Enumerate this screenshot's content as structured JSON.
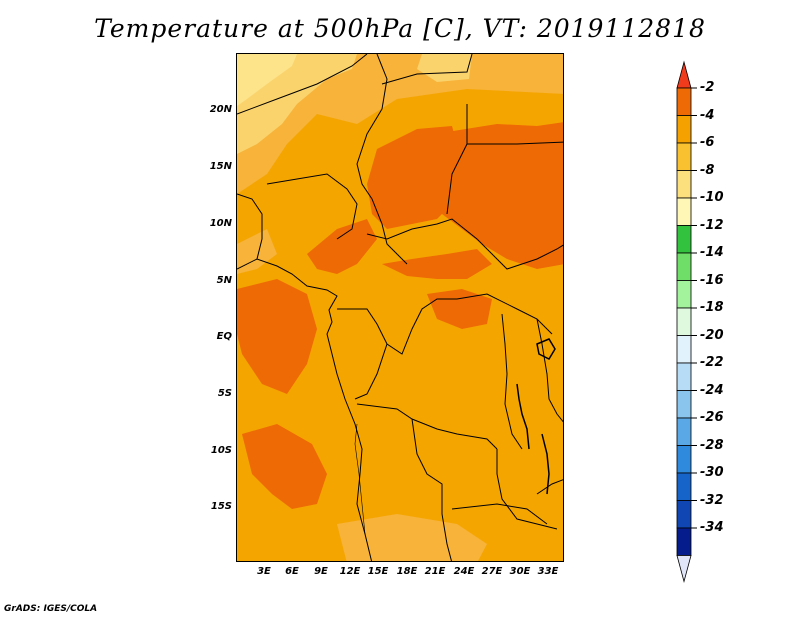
{
  "title": "Temperature at 500hPa [C], VT: 2019112818",
  "credit": "GrADS: IGES/COLA",
  "lat_labels": [
    "20N",
    "15N",
    "10N",
    "5N",
    "EQ",
    "5S",
    "10S",
    "15S"
  ],
  "lon_labels": [
    "3E",
    "6E",
    "9E",
    "12E",
    "15E",
    "18E",
    "21E",
    "24E",
    "27E",
    "30E",
    "33E"
  ],
  "colorbar": {
    "labels": [
      "-2",
      "-4",
      "-6",
      "-8",
      "-10",
      "-12",
      "-14",
      "-16",
      "-18",
      "-20",
      "-22",
      "-24",
      "-26",
      "-28",
      "-30",
      "-32",
      "-34"
    ],
    "colors": [
      "#f0582a",
      "#ee6a04",
      "#f5a200",
      "#f9c02f",
      "#fde07e",
      "#fff7b6",
      "#33c23d",
      "#6ede68",
      "#a2f39b",
      "#dff9df",
      "#e2f2fc",
      "#b7dcf6",
      "#8ac5ee",
      "#5ba8e6",
      "#2f8ade",
      "#1663ca",
      "#0f46b4",
      "#051c8c"
    ],
    "top_arrow_color": "#f03c1c",
    "bottom_arrow_color": "#e0e6f8"
  },
  "map_colors": {
    "base": "#f5a500",
    "warm_orange": "#f7b33a",
    "light_yellow": "#fbd36c",
    "pale_yellow": "#fde38a",
    "dark_patch": "#ee6a04"
  }
}
